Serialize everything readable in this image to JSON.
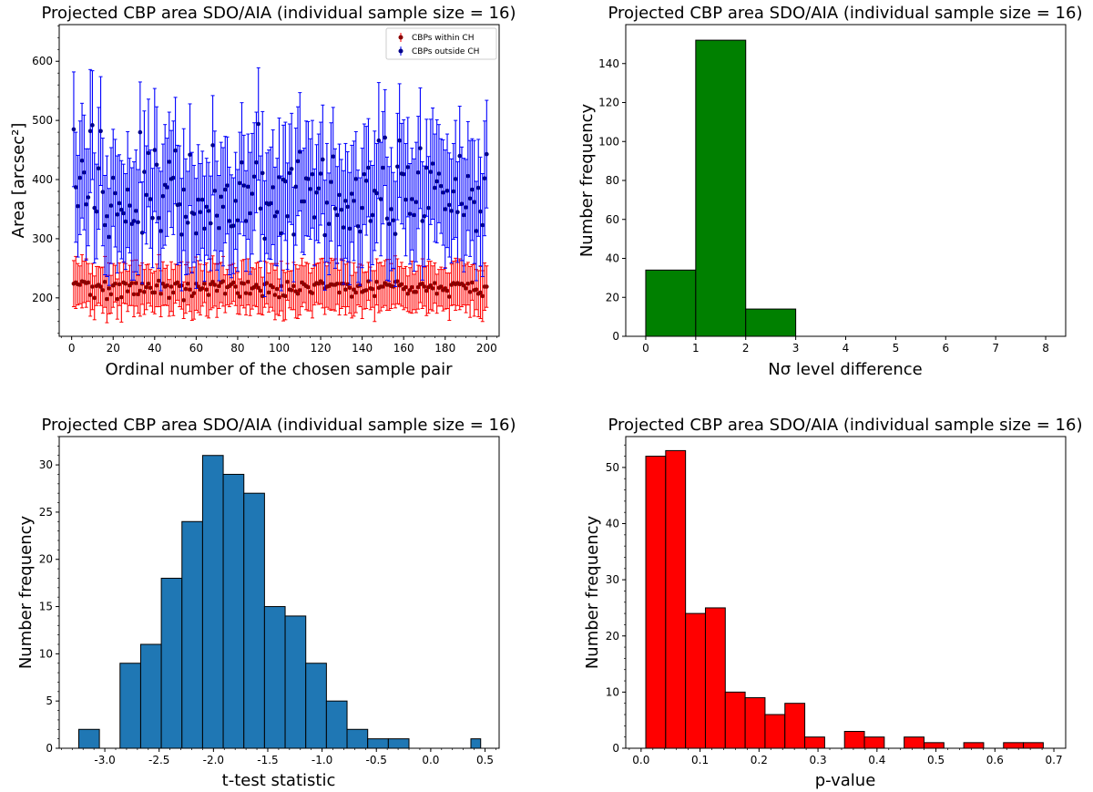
{
  "chart_data": [
    {
      "id": "p1",
      "type": "scatter",
      "title": "Projected CBP area SDO/AIA (individual sample size = 16)",
      "xlabel": "Ordinal number of the chosen sample pair",
      "ylabel": "Area [arcsec²]",
      "xlim": [
        -6,
        206
      ],
      "ylim": [
        135,
        662
      ],
      "xticks": [
        0,
        20,
        40,
        60,
        80,
        100,
        120,
        140,
        160,
        180,
        200
      ],
      "yticks": [
        200,
        300,
        400,
        500,
        600
      ],
      "legend_position": "top-right",
      "series": [
        {
          "name": "CBPs within CH",
          "color": "#ff0000",
          "marker_color": "#8b0000",
          "x_start": 1,
          "x_step": 1,
          "values": [
            224,
            226,
            223,
            222,
            228,
            227,
            225,
            226,
            205,
            219,
            200,
            220,
            222,
            219,
            213,
            227,
            198,
            216,
            206,
            221,
            224,
            198,
            223,
            201,
            226,
            224,
            211,
            221,
            225,
            206,
            225,
            206,
            212,
            224,
            210,
            218,
            224,
            217,
            209,
            209,
            221,
            229,
            207,
            224,
            219,
            221,
            200,
            219,
            209,
            224,
            226,
            220,
            221,
            196,
            215,
            224,
            214,
            203,
            208,
            224,
            219,
            214,
            216,
            224,
            214,
            205,
            223,
            227,
            222,
            212,
            220,
            226,
            228,
            207,
            218,
            220,
            223,
            226,
            219,
            208,
            202,
            225,
            224,
            208,
            227,
            207,
            216,
            218,
            222,
            217,
            212,
            203,
            223,
            225,
            209,
            221,
            218,
            205,
            215,
            201,
            220,
            204,
            203,
            227,
            214,
            213,
            220,
            211,
            207,
            213,
            226,
            223,
            220,
            218,
            210,
            208,
            222,
            225,
            224,
            228,
            225,
            216,
            219,
            220,
            223,
            222,
            222,
            224,
            209,
            224,
            224,
            214,
            223,
            217,
            202,
            214,
            209,
            220,
            221,
            210,
            212,
            213,
            228,
            216,
            215,
            203,
            227,
            217,
            219,
            219,
            225,
            222,
            222,
            220,
            219,
            227,
            228,
            221,
            223,
            215,
            218,
            207,
            213,
            218,
            210,
            210,
            218,
            223,
            224,
            219,
            212,
            218,
            221,
            216,
            225,
            207,
            217,
            219,
            213,
            216,
            212,
            202,
            222,
            225,
            223,
            225,
            223,
            224,
            221,
            216,
            224,
            210,
            226,
            213,
            214,
            207,
            209,
            203,
            219,
            219
          ],
          "errors": [
            39,
            44,
            35,
            32,
            45,
            35,
            41,
            32,
            36,
            39,
            37,
            33,
            31,
            32,
            39,
            43,
            40,
            43,
            32,
            37,
            31,
            34,
            36,
            42,
            35,
            34,
            34,
            34,
            38,
            38,
            39,
            32,
            43,
            35,
            38,
            38,
            33,
            31,
            33,
            36,
            36,
            44,
            39,
            37,
            31,
            34,
            31,
            42,
            39,
            33,
            30,
            35,
            40,
            31,
            41,
            36,
            37,
            41,
            44,
            45,
            44,
            43,
            30,
            32,
            45,
            39,
            43,
            44,
            36,
            45,
            38,
            34,
            42,
            32,
            30,
            35,
            33,
            32,
            32,
            35,
            30,
            38,
            41,
            37,
            39,
            37,
            35,
            31,
            37,
            44,
            39,
            32,
            39,
            35,
            33,
            37,
            40,
            42,
            43,
            31,
            42,
            43,
            40,
            31,
            31,
            33,
            40,
            45,
            42,
            42,
            41,
            31,
            40,
            40,
            32,
            42,
            34,
            33,
            35,
            38,
            42,
            44,
            35,
            39,
            44,
            42,
            44,
            35,
            38,
            42,
            39,
            43,
            38,
            43,
            36,
            45,
            34,
            32,
            36,
            45,
            31,
            31,
            32,
            36,
            31,
            43,
            39,
            42,
            41,
            35,
            38,
            43,
            43,
            38,
            30,
            44,
            38,
            32,
            37,
            35,
            35,
            30,
            38,
            44,
            30,
            35,
            37,
            31,
            42,
            33,
            42,
            44,
            41,
            38,
            34,
            33,
            31,
            33,
            35,
            35,
            30,
            40,
            35,
            37,
            44,
            38,
            43,
            39,
            33,
            41,
            36,
            43,
            30,
            44,
            34,
            39,
            44,
            43,
            40,
            35
          ]
        },
        {
          "name": "CBPs outside CH",
          "color": "#0000ff",
          "marker_color": "#00008b",
          "x_start": 1,
          "x_step": 1,
          "values": [
            485,
            387,
            355,
            403,
            432,
            412,
            358,
            370,
            482,
            492,
            352,
            346,
            419,
            482,
            379,
            323,
            338,
            303,
            356,
            403,
            377,
            341,
            360,
            349,
            343,
            329,
            383,
            356,
            325,
            330,
            347,
            328,
            480,
            310,
            413,
            374,
            445,
            367,
            335,
            450,
            425,
            335,
            313,
            372,
            391,
            387,
            430,
            401,
            403,
            449,
            357,
            358,
            307,
            383,
            337,
            327,
            442,
            344,
            342,
            309,
            366,
            345,
            366,
            317,
            354,
            347,
            326,
            458,
            381,
            339,
            318,
            371,
            354,
            383,
            390,
            330,
            321,
            322,
            364,
            331,
            394,
            429,
            390,
            330,
            388,
            343,
            376,
            405,
            429,
            494,
            351,
            411,
            300,
            360,
            358,
            360,
            387,
            338,
            345,
            404,
            309,
            400,
            397,
            338,
            411,
            418,
            307,
            388,
            431,
            447,
            363,
            363,
            402,
            401,
            384,
            409,
            336,
            378,
            385,
            410,
            434,
            306,
            361,
            325,
            396,
            439,
            351,
            340,
            374,
            349,
            319,
            364,
            354,
            317,
            376,
            364,
            401,
            321,
            312,
            352,
            409,
            398,
            420,
            330,
            340,
            381,
            377,
            466,
            367,
            420,
            471,
            334,
            325,
            350,
            331,
            308,
            422,
            466,
            410,
            409,
            366,
            421,
            342,
            367,
            340,
            362,
            412,
            453,
            330,
            338,
            420,
            352,
            413,
            427,
            386,
            397,
            410,
            389,
            378,
            350,
            381,
            357,
            347,
            380,
            401,
            345,
            440,
            359,
            340,
            353,
            406,
            368,
            383,
            362,
            313,
            386,
            346,
            323,
            402,
            443
          ],
          "errors": [
            97,
            93,
            86,
            96,
            97,
            97,
            94,
            82,
            104,
            92,
            93,
            80,
            103,
            92,
            91,
            84,
            102,
            82,
            98,
            82,
            91,
            99,
            82,
            83,
            83,
            81,
            98,
            80,
            95,
            100,
            103,
            89,
            85,
            86,
            103,
            83,
            91,
            83,
            84,
            104,
            98,
            85,
            101,
            88,
            102,
            83,
            84,
            82,
            96,
            90,
            101,
            99,
            95,
            103,
            98,
            87,
            86,
            102,
            82,
            93,
            93,
            82,
            82,
            89,
            82,
            82,
            80,
            84,
            101,
            92,
            89,
            92,
            100,
            90,
            82,
            91,
            87,
            81,
            82,
            86,
            86,
            101,
            85,
            85,
            89,
            103,
            102,
            91,
            85,
            95,
            89,
            104,
            98,
            85,
            92,
            95,
            97,
            83,
            91,
            100,
            97,
            92,
            100,
            90,
            83,
            94,
            80,
            99,
            92,
            100,
            86,
            90,
            97,
            97,
            85,
            91,
            82,
            81,
            92,
            87,
            92,
            93,
            100,
            86,
            100,
            83,
            101,
            82,
            86,
            85,
            96,
            97,
            93,
            95,
            82,
            101,
            80,
            95,
            91,
            101,
            85,
            92,
            83,
            101,
            84,
            101,
            84,
            98,
            96,
            95,
            81,
            104,
            97,
            104,
            81,
            89,
            90,
            96,
            85,
            92,
            95,
            84,
            85,
            86,
            95,
            101,
            95,
            102,
            100,
            85,
            82,
            87,
            89,
            94,
            91,
            104,
            83,
            80,
            89,
            100,
            96,
            88,
            88,
            81,
            99,
            85,
            84,
            96,
            96,
            81,
            92,
            98,
            86,
            104,
            84,
            82,
            92,
            87,
            97,
            91
          ]
        }
      ]
    },
    {
      "id": "p2",
      "type": "bar",
      "title": "Projected CBP area SDO/AIA (individual sample size = 16)",
      "xlabel": "Nσ level difference",
      "ylabel": "Number frequency",
      "xlim": [
        -0.4,
        8.4
      ],
      "ylim": [
        0,
        160
      ],
      "xticks": [
        0,
        1,
        2,
        3,
        4,
        5,
        6,
        7,
        8
      ],
      "yticks": [
        0,
        20,
        40,
        60,
        80,
        100,
        120,
        140
      ],
      "color": "#008000",
      "bins": [
        [
          0,
          1,
          34
        ],
        [
          1,
          2,
          152
        ],
        [
          2,
          3,
          14
        ]
      ]
    },
    {
      "id": "p3",
      "type": "bar",
      "title": "Projected CBP area SDO/AIA (individual sample size = 16)",
      "xlabel": "t-test statistic",
      "ylabel": "Number frequency",
      "xlim": [
        -3.42,
        0.63
      ],
      "ylim": [
        0,
        33
      ],
      "xticks": [
        -3.0,
        -2.5,
        -2.0,
        -1.5,
        -1.0,
        -0.5,
        0.0,
        0.5
      ],
      "yticks": [
        0,
        5,
        10,
        15,
        20,
        25,
        30
      ],
      "color": "#1f77b4",
      "bins": [
        [
          -3.24,
          -3.05,
          2
        ],
        [
          -3.05,
          -2.86,
          0
        ],
        [
          -2.86,
          -2.67,
          9
        ],
        [
          -2.67,
          -2.48,
          11
        ],
        [
          -2.48,
          -2.29,
          18
        ],
        [
          -2.29,
          -2.1,
          24
        ],
        [
          -2.1,
          -1.91,
          31
        ],
        [
          -1.91,
          -1.72,
          29
        ],
        [
          -1.72,
          -1.53,
          27
        ],
        [
          -1.53,
          -1.34,
          15
        ],
        [
          -1.34,
          -1.15,
          14
        ],
        [
          -1.15,
          -0.96,
          9
        ],
        [
          -0.96,
          -0.77,
          5
        ],
        [
          -0.77,
          -0.58,
          2
        ],
        [
          -0.58,
          -0.39,
          1
        ],
        [
          -0.39,
          -0.2,
          1
        ],
        [
          -0.2,
          -0.01,
          0
        ],
        [
          -0.01,
          0.18,
          0
        ],
        [
          0.18,
          0.37,
          0
        ],
        [
          0.37,
          0.46,
          1
        ]
      ]
    },
    {
      "id": "p4",
      "type": "bar",
      "title": "Projected CBP area SDO/AIA (individual sample size = 16)",
      "xlabel": "p-value",
      "ylabel": "Number frequency",
      "xlim": [
        -0.026,
        0.72
      ],
      "ylim": [
        0,
        55.5
      ],
      "xticks": [
        0.0,
        0.1,
        0.2,
        0.3,
        0.4,
        0.5,
        0.6,
        0.7
      ],
      "yticks": [
        0,
        10,
        20,
        30,
        40,
        50
      ],
      "color": "#ff0000",
      "bins": [
        [
          0.008,
          0.0417,
          52
        ],
        [
          0.0417,
          0.0754,
          53
        ],
        [
          0.0754,
          0.1091,
          24
        ],
        [
          0.1091,
          0.1428,
          25
        ],
        [
          0.1428,
          0.1765,
          10
        ],
        [
          0.1765,
          0.2102,
          9
        ],
        [
          0.2102,
          0.2439,
          6
        ],
        [
          0.2439,
          0.2776,
          8
        ],
        [
          0.2776,
          0.3113,
          2
        ],
        [
          0.3113,
          0.345,
          0
        ],
        [
          0.345,
          0.3787,
          3
        ],
        [
          0.3787,
          0.4124,
          2
        ],
        [
          0.4124,
          0.4461,
          0
        ],
        [
          0.4461,
          0.4798,
          2
        ],
        [
          0.4798,
          0.5135,
          1
        ],
        [
          0.5135,
          0.5472,
          0
        ],
        [
          0.5472,
          0.5809,
          1
        ],
        [
          0.5809,
          0.6146,
          0
        ],
        [
          0.6146,
          0.6483,
          1
        ],
        [
          0.6483,
          0.682,
          1
        ]
      ]
    }
  ]
}
